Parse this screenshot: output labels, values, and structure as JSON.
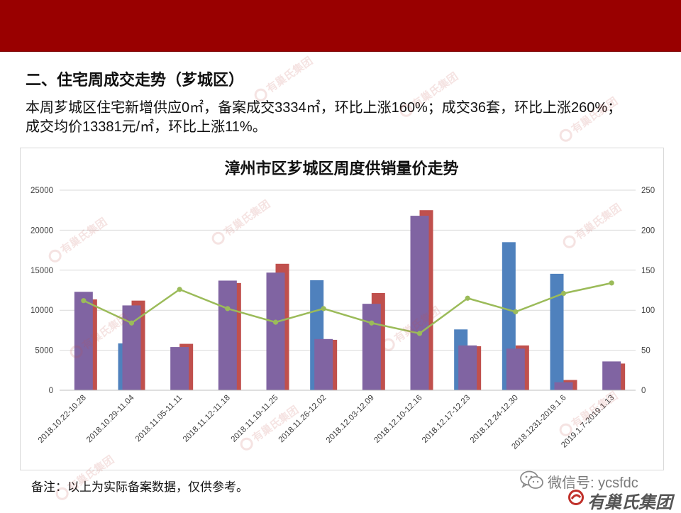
{
  "colors": {
    "header_band": "#990000",
    "bar_blue": "#4f81bd",
    "bar_red": "#c0504d",
    "bar_purple": "#8064a2",
    "line_green": "#9bbb59"
  },
  "section_title": "二、住宅周成交走势（芗城区）",
  "summary_lines": [
    "本周芗城区住宅新增供应0㎡，备案成交3334㎡，环比上涨160%；成交36套，环比上涨260%；",
    "成交均价13381元/㎡，环比上涨11%。"
  ],
  "chart_data": {
    "type": "bar",
    "title": "漳州市区芗城区周度供销量价走势",
    "categories": [
      "2018.10.22-10.28",
      "2018.10.29-11.04",
      "2018.11.05-11.11",
      "2018.11.12-11.18",
      "2018.11.19-11.25",
      "2018.11.26-12.02",
      "2018.12.03-12.09",
      "2018.12.10-12.16",
      "2018.12.17-12.23",
      "2018.12.24-12.30",
      "2018.1231-2019.1.6",
      "2019.1.7-2019.1.13"
    ],
    "y_left": {
      "min": 0,
      "max": 25000,
      "ticks": [
        0,
        5000,
        10000,
        15000,
        20000,
        25000
      ]
    },
    "y_right": {
      "min": 0,
      "max": 250,
      "ticks": [
        0,
        50,
        100,
        150,
        200,
        250
      ]
    },
    "series": [
      {
        "type": "bar",
        "axis": "left",
        "color": "#4f81bd",
        "values": [
          0,
          5850,
          0,
          0,
          0,
          13750,
          0,
          0,
          7600,
          18500,
          14550,
          0
        ]
      },
      {
        "type": "bar",
        "axis": "left",
        "color": "#c0504d",
        "values": [
          11350,
          11200,
          5800,
          13400,
          15800,
          6300,
          12150,
          22500,
          5500,
          5600,
          1282,
          3334
        ]
      },
      {
        "type": "bar",
        "axis": "right",
        "color": "#8064a2",
        "values": [
          123,
          106,
          54,
          137,
          147,
          64,
          108,
          218,
          56,
          52,
          10,
          36
        ]
      },
      {
        "type": "line",
        "axis": "right",
        "color": "#9bbb59",
        "values": [
          112,
          84,
          126,
          102,
          85,
          102,
          84,
          71,
          115,
          98,
          121,
          134
        ]
      }
    ],
    "grid": true,
    "legend": "none"
  },
  "footnote": "备注：以上为实际备案数据，仅供参考。",
  "wechat_label": "微信号: ycsfdc",
  "brand": "有巢氏集团",
  "watermark": "有巢氏集团"
}
